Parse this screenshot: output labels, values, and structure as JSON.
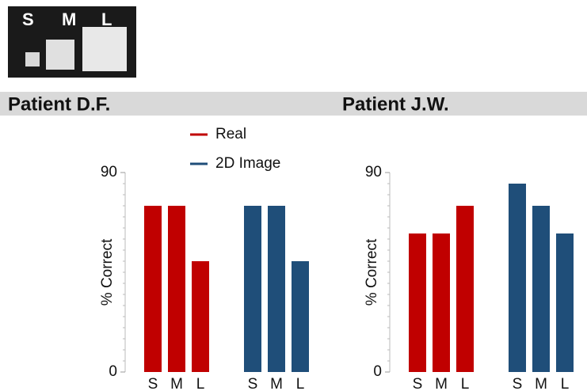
{
  "image_labels": [
    "S",
    "M",
    "L"
  ],
  "chart_data": [
    {
      "type": "bar",
      "title": "Patient D.F.",
      "ylabel": "% Correct",
      "categories": [
        "S",
        "M",
        "L"
      ],
      "series": [
        {
          "name": "Real",
          "color": "#c00000",
          "values": [
            75,
            75,
            50
          ]
        },
        {
          "name": "2D Image",
          "color": "#1f4e79",
          "values": [
            75,
            75,
            50
          ]
        }
      ],
      "ylim": [
        0,
        90
      ],
      "yticks": [
        0,
        90
      ]
    },
    {
      "type": "bar",
      "title": "Patient J.W.",
      "ylabel": "% Correct",
      "categories": [
        "S",
        "M",
        "L"
      ],
      "series": [
        {
          "color": "#c00000",
          "values": [
            62.5,
            62.5,
            75
          ]
        },
        {
          "color": "#1f4e79",
          "values": [
            85,
            75,
            62.5
          ]
        }
      ],
      "ylim": [
        0,
        90
      ],
      "yticks": [
        0,
        90
      ]
    }
  ]
}
